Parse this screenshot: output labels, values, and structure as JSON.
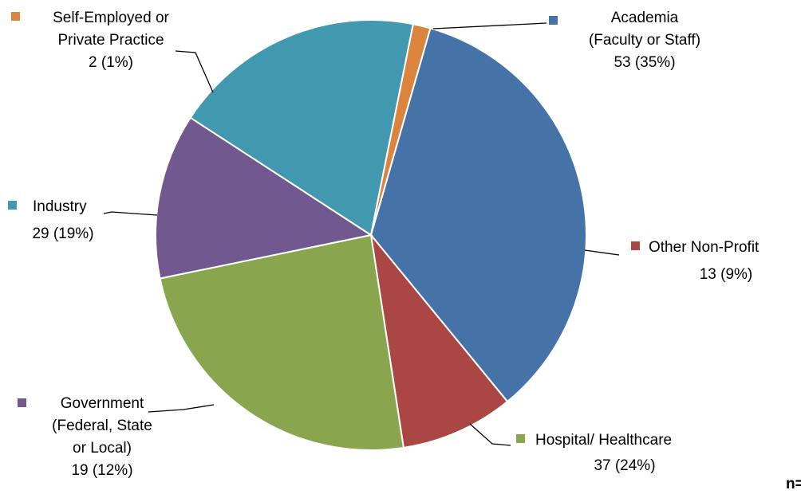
{
  "chart_data": {
    "type": "pie",
    "title": "",
    "categories": [
      "Academia (Faculty or Staff)",
      "Other Non-Profit",
      "Hospital/ Healthcare",
      "Government (Federal, State or Local)",
      "Industry",
      "Self-Employed or Private Practice"
    ],
    "values": [
      53,
      13,
      37,
      19,
      29,
      2
    ],
    "percent_labels": [
      "35%",
      "9%",
      "24%",
      "12%",
      "19%",
      "1%"
    ],
    "colors": [
      "#4572A7",
      "#AA4643",
      "#89A54E",
      "#71588F",
      "#4198AF",
      "#DB843D"
    ],
    "legend": "labels",
    "labels": [
      {
        "lines": [
          "Academia",
          "(Faculty or Staff)"
        ],
        "value_text": "53 (35%)"
      },
      {
        "lines": [
          "Other Non-Profit"
        ],
        "value_text": "13 (9%)"
      },
      {
        "lines": [
          "Hospital/ Healthcare"
        ],
        "value_text": "37 (24%)"
      },
      {
        "lines": [
          "Government",
          "(Federal, State",
          "or Local)"
        ],
        "value_text": "19 (12%)"
      },
      {
        "lines": [
          "Industry"
        ],
        "value_text": "29 (19%)"
      },
      {
        "lines": [
          "Self-Employed or",
          "Private Practice"
        ],
        "value_text": "2 (1%)"
      }
    ],
    "annotation": "n="
  }
}
